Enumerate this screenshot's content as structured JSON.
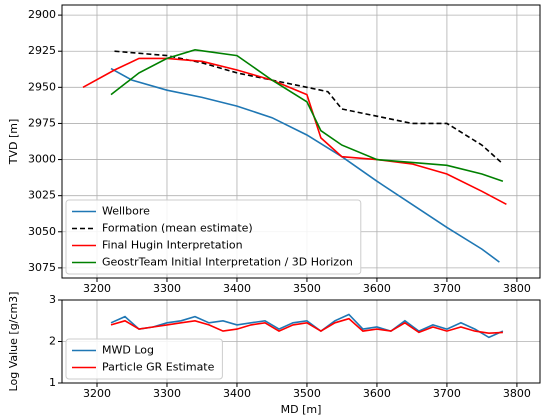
{
  "chart_data": [
    {
      "type": "line",
      "ylabel": "TVD [m]",
      "xlim": [
        3150,
        3833
      ],
      "ylim": [
        2893,
        3082
      ],
      "y_inverted": true,
      "xticks": [
        3200,
        3300,
        3400,
        3500,
        3600,
        3700,
        3800
      ],
      "yticks": [
        2900,
        2925,
        2950,
        2975,
        3000,
        3025,
        3050,
        3075
      ],
      "grid": true,
      "legend": "lower left",
      "series": [
        {
          "name": "Wellbore",
          "color": "#1f77b4",
          "dash": "solid",
          "x": [
            3220,
            3250,
            3300,
            3350,
            3400,
            3450,
            3500,
            3550,
            3600,
            3650,
            3700,
            3750,
            3775
          ],
          "values": [
            2937,
            2945,
            2952,
            2957,
            2963,
            2971,
            2983,
            2998,
            3015,
            3031,
            3047,
            3062,
            3071
          ]
        },
        {
          "name": "Formation (mean estimate)",
          "color": "#000000",
          "dash": "dashed",
          "x": [
            3225,
            3300,
            3350,
            3400,
            3450,
            3500,
            3530,
            3550,
            3600,
            3650,
            3700,
            3750,
            3780
          ],
          "values": [
            2925,
            2928,
            2933,
            2940,
            2945,
            2950,
            2953,
            2965,
            2970,
            2975,
            2975,
            2990,
            3003
          ]
        },
        {
          "name": "Final Hugin Interpretation",
          "color": "#ff0000",
          "dash": "solid",
          "x": [
            3180,
            3225,
            3260,
            3300,
            3350,
            3400,
            3450,
            3500,
            3520,
            3550,
            3600,
            3650,
            3700,
            3750,
            3785
          ],
          "values": [
            2950,
            2938,
            2930,
            2930,
            2932,
            2938,
            2945,
            2955,
            2985,
            2998,
            3000,
            3003,
            3010,
            3022,
            3031
          ]
        },
        {
          "name": "GeostrTeam Initial Interpretation / 3D Horizon",
          "color": "#008000",
          "dash": "solid",
          "x": [
            3220,
            3260,
            3300,
            3340,
            3400,
            3450,
            3500,
            3520,
            3550,
            3600,
            3700,
            3750,
            3780
          ],
          "values": [
            2955,
            2940,
            2930,
            2924,
            2928,
            2945,
            2960,
            2980,
            2990,
            3000,
            3004,
            3010,
            3015
          ]
        }
      ]
    },
    {
      "type": "line",
      "xlabel": "MD [m]",
      "ylabel": "Log Value [g/cm3]",
      "xlim": [
        3150,
        3833
      ],
      "ylim": [
        1,
        3
      ],
      "xticks": [
        3200,
        3300,
        3400,
        3500,
        3600,
        3700,
        3800
      ],
      "yticks": [
        1,
        2,
        3
      ],
      "grid": true,
      "legend": "lower left",
      "series": [
        {
          "name": "MWD Log",
          "color": "#1f77b4",
          "dash": "solid",
          "x": [
            3220,
            3240,
            3260,
            3280,
            3300,
            3320,
            3340,
            3360,
            3380,
            3400,
            3420,
            3440,
            3460,
            3480,
            3500,
            3520,
            3540,
            3560,
            3580,
            3600,
            3620,
            3640,
            3660,
            3680,
            3700,
            3720,
            3740,
            3760,
            3780
          ],
          "values": [
            2.45,
            2.6,
            2.3,
            2.35,
            2.45,
            2.5,
            2.6,
            2.45,
            2.5,
            2.4,
            2.45,
            2.5,
            2.3,
            2.45,
            2.5,
            2.25,
            2.5,
            2.65,
            2.3,
            2.35,
            2.25,
            2.5,
            2.25,
            2.4,
            2.3,
            2.45,
            2.3,
            2.1,
            2.25
          ]
        },
        {
          "name": "Particle GR Estimate",
          "color": "#ff0000",
          "dash": "solid",
          "x": [
            3220,
            3240,
            3260,
            3280,
            3300,
            3320,
            3340,
            3360,
            3380,
            3400,
            3420,
            3440,
            3460,
            3480,
            3500,
            3520,
            3540,
            3560,
            3580,
            3600,
            3620,
            3640,
            3660,
            3680,
            3700,
            3720,
            3740,
            3760,
            3780
          ],
          "values": [
            2.4,
            2.5,
            2.3,
            2.35,
            2.4,
            2.45,
            2.5,
            2.4,
            2.25,
            2.3,
            2.4,
            2.45,
            2.25,
            2.4,
            2.45,
            2.25,
            2.45,
            2.55,
            2.25,
            2.3,
            2.25,
            2.45,
            2.22,
            2.35,
            2.25,
            2.35,
            2.25,
            2.2,
            2.22
          ]
        }
      ]
    }
  ]
}
